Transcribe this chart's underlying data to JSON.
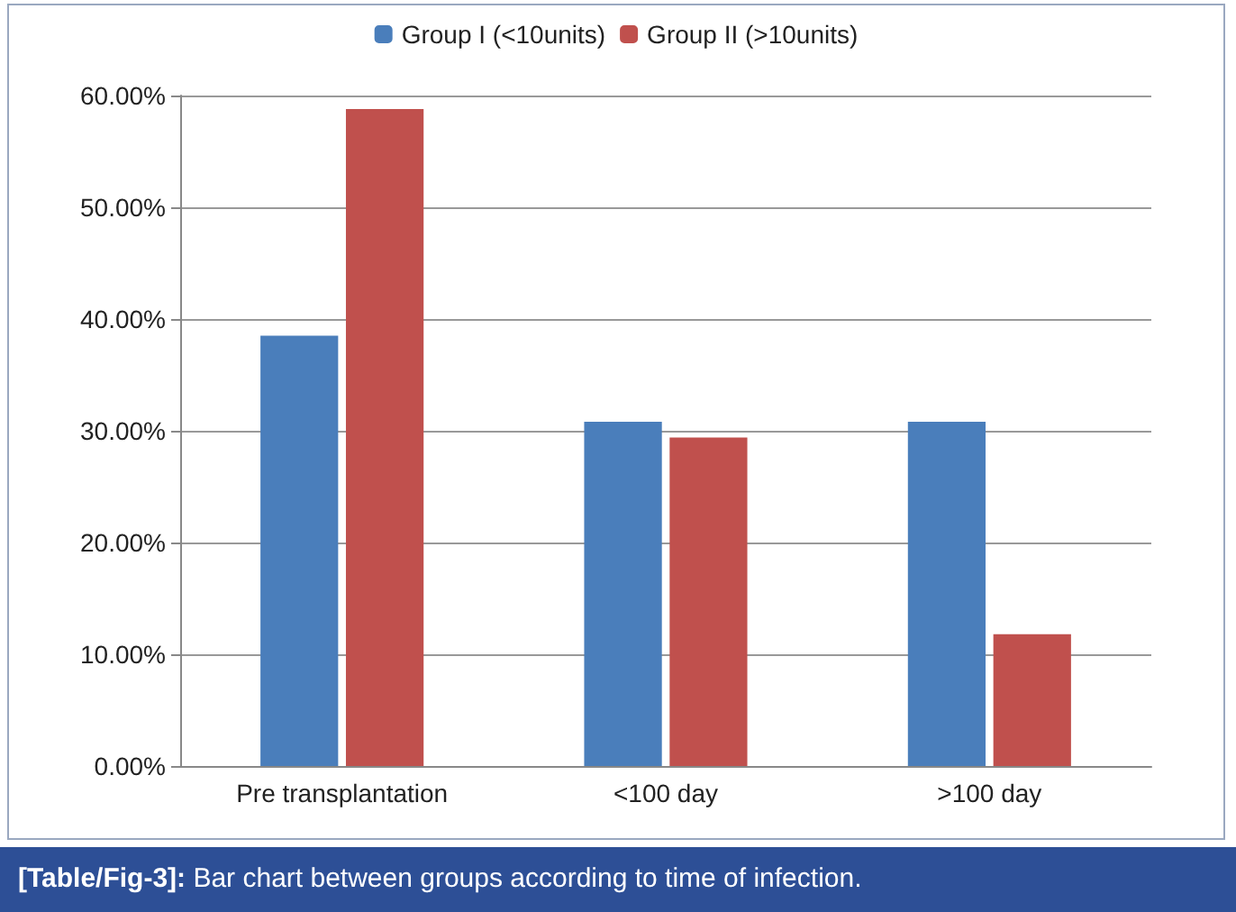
{
  "chart_data": {
    "type": "bar",
    "categories": [
      "Pre transplantation",
      "<100 day",
      ">100 day"
    ],
    "series": [
      {
        "name": "Group I (<10units)",
        "color": "#4a7ebb",
        "values": [
          38.5,
          30.8,
          30.8
        ]
      },
      {
        "name": "Group II (>10units)",
        "color": "#c0504d",
        "values": [
          58.8,
          29.4,
          11.8
        ]
      }
    ],
    "ylim": [
      0,
      60
    ],
    "yticks": [
      {
        "value": 0,
        "label": "0.00%"
      },
      {
        "value": 10,
        "label": "10.00%"
      },
      {
        "value": 20,
        "label": "20.00%"
      },
      {
        "value": 30,
        "label": "30.00%"
      },
      {
        "value": 40,
        "label": "40.00%"
      },
      {
        "value": 50,
        "label": "50.00%"
      },
      {
        "value": 60,
        "label": "60.00%"
      }
    ],
    "grid": "y",
    "legend": "top",
    "annotations": [
      "[Table/Fig-3]: Bar chart between groups according to time of infection."
    ]
  }
}
